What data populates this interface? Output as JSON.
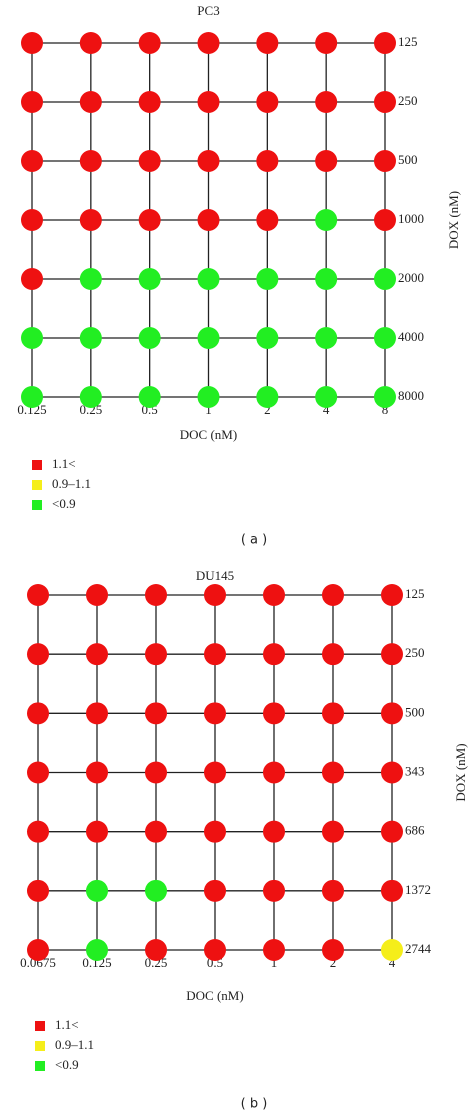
{
  "chart_data": [
    {
      "type": "dot-grid",
      "title": "PC3",
      "x_label": "DOC (nM)",
      "y_label": "DOX (nM)",
      "caption": "( a )",
      "x": [
        0.125,
        0.25,
        0.5,
        1,
        2,
        4,
        8
      ],
      "y": [
        125,
        250,
        500,
        1000,
        2000,
        4000,
        8000
      ],
      "legend": [
        {
          "label": "1.1<",
          "color": "#ee1111"
        },
        {
          "label": "0.9–1.1",
          "color": "#f5ee1a"
        },
        {
          "label": "<0.9",
          "color": "#22ee22"
        }
      ],
      "cells": [
        [
          0,
          0,
          0,
          0,
          0,
          0,
          0
        ],
        [
          0,
          0,
          0,
          0,
          0,
          0,
          0
        ],
        [
          0,
          0,
          0,
          0,
          0,
          0,
          0
        ],
        [
          0,
          0,
          0,
          0,
          0,
          2,
          0
        ],
        [
          0,
          2,
          2,
          2,
          2,
          2,
          2
        ],
        [
          2,
          2,
          2,
          2,
          2,
          2,
          2
        ],
        [
          2,
          2,
          2,
          2,
          2,
          2,
          2
        ]
      ]
    },
    {
      "type": "dot-grid",
      "title": "DU145",
      "x_label": "DOC (nM)",
      "y_label": "DOX (nM)",
      "caption": "( b )",
      "x": [
        0.0675,
        0.125,
        0.25,
        0.5,
        1,
        2,
        4
      ],
      "y": [
        125,
        250,
        500,
        343,
        686,
        1372,
        2744
      ],
      "legend": [
        {
          "label": "1.1<",
          "color": "#ee1111"
        },
        {
          "label": "0.9–1.1",
          "color": "#f5ee1a"
        },
        {
          "label": "<0.9",
          "color": "#22ee22"
        }
      ],
      "cells": [
        [
          0,
          0,
          0,
          0,
          0,
          0,
          0
        ],
        [
          0,
          0,
          0,
          0,
          0,
          0,
          0
        ],
        [
          0,
          0,
          0,
          0,
          0,
          0,
          0
        ],
        [
          0,
          0,
          0,
          0,
          0,
          0,
          0
        ],
        [
          0,
          0,
          0,
          0,
          0,
          0,
          0
        ],
        [
          0,
          2,
          2,
          0,
          0,
          0,
          0
        ],
        [
          0,
          2,
          0,
          0,
          0,
          0,
          1
        ]
      ]
    }
  ]
}
